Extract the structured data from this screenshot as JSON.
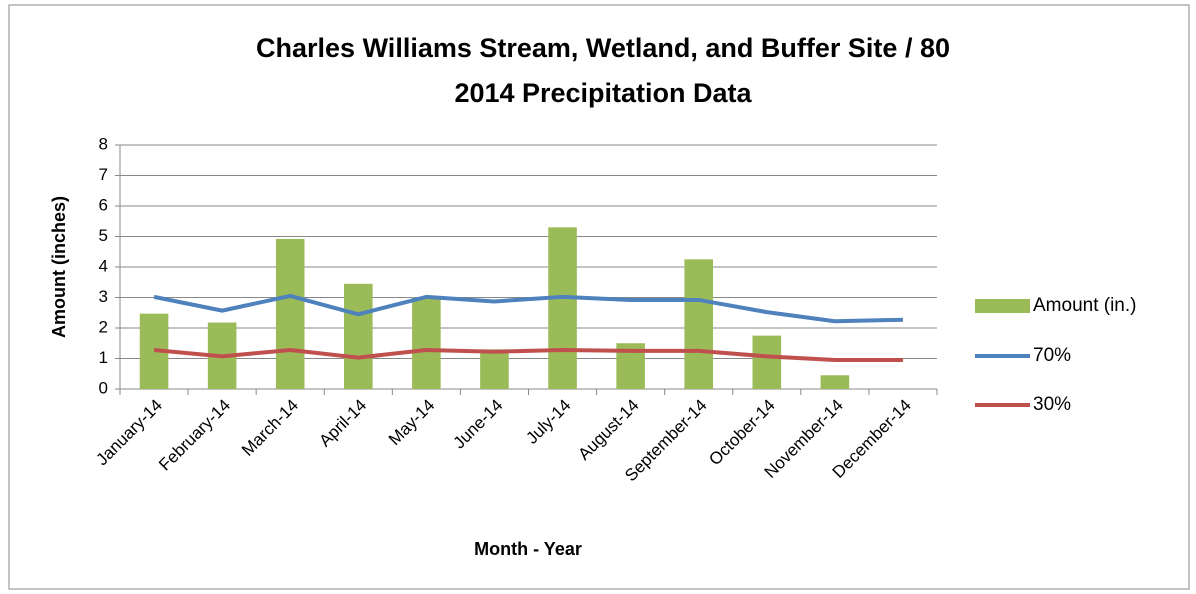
{
  "chart_data": {
    "type": "bar-line",
    "title": "Charles Williams Stream, Wetland, and Buffer Site / 80",
    "subtitle": "2014 Precipitation Data",
    "x_label": "Month - Year",
    "y_label": "Amount (inches)",
    "categories": [
      "January-14",
      "February-14",
      "March-14",
      "April-14",
      "May-14",
      "June-14",
      "July-14",
      "August-14",
      "September-14",
      "October-14",
      "November-14",
      "December-14"
    ],
    "series": [
      {
        "name": "Amount (in.)",
        "type": "bar",
        "color": "#9bbb59",
        "values": [
          2.47,
          2.18,
          4.92,
          3.45,
          3.0,
          1.3,
          5.3,
          1.5,
          4.25,
          1.75,
          0.45,
          null
        ]
      },
      {
        "name": "70%",
        "type": "line",
        "color": "#4f81bd",
        "values": [
          3.02,
          2.57,
          3.05,
          2.45,
          3.02,
          2.87,
          3.02,
          2.92,
          2.92,
          2.52,
          2.22,
          2.27
        ]
      },
      {
        "name": "30%",
        "type": "line",
        "color": "#c0504d",
        "values": [
          1.28,
          1.07,
          1.28,
          1.03,
          1.28,
          1.22,
          1.28,
          1.25,
          1.25,
          1.07,
          0.95,
          0.95
        ]
      }
    ],
    "ylim": [
      0,
      8
    ],
    "yticks": [
      0,
      1,
      2,
      3,
      4,
      5,
      6,
      7,
      8
    ],
    "grid": true,
    "legend": "right"
  }
}
